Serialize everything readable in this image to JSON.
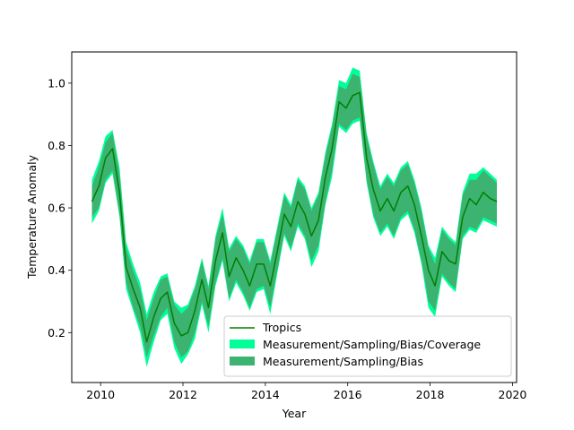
{
  "chart_data": {
    "type": "area",
    "xlabel": "Year",
    "ylabel": "Temperature Anomaly",
    "xlim": [
      2009.3,
      2020.1
    ],
    "ylim": [
      0.04,
      1.1
    ],
    "xticks": [
      2010,
      2012,
      2014,
      2016,
      2018,
      2020
    ],
    "yticks": [
      0.2,
      0.4,
      0.6,
      0.8,
      1.0
    ],
    "xtick_labels": [
      "2010",
      "2012",
      "2014",
      "2016",
      "2018",
      "2020"
    ],
    "ytick_labels": [
      "0.2",
      "0.4",
      "0.6",
      "0.8",
      "1.0"
    ],
    "grid": false,
    "legend_position": "lower-right",
    "colors": {
      "line": "#008000",
      "coverage_band": "#00ff99",
      "msb_band": "#3cb371"
    },
    "legend": [
      {
        "label": "Tropics",
        "kind": "line"
      },
      {
        "label": "Measurement/Sampling/Bias/Coverage",
        "kind": "patch-coverage"
      },
      {
        "label": "Measurement/Sampling/Bias",
        "kind": "patch-msb"
      }
    ],
    "x": [
      2009.79,
      2009.96,
      2010.12,
      2010.29,
      2010.46,
      2010.62,
      2010.79,
      2010.96,
      2011.12,
      2011.29,
      2011.46,
      2011.62,
      2011.79,
      2011.96,
      2012.12,
      2012.29,
      2012.46,
      2012.62,
      2012.79,
      2012.96,
      2013.12,
      2013.29,
      2013.46,
      2013.62,
      2013.79,
      2013.96,
      2014.12,
      2014.29,
      2014.46,
      2014.62,
      2014.79,
      2014.96,
      2015.12,
      2015.29,
      2015.46,
      2015.62,
      2015.79,
      2015.96,
      2016.12,
      2016.29,
      2016.46,
      2016.62,
      2016.79,
      2016.96,
      2017.12,
      2017.29,
      2017.46,
      2017.62,
      2017.79,
      2017.96,
      2018.12,
      2018.29,
      2018.46,
      2018.62,
      2018.79,
      2018.96,
      2019.12,
      2019.29,
      2019.46,
      2019.62
    ],
    "series": [
      {
        "name": "Tropics",
        "values": [
          0.62,
          0.67,
          0.76,
          0.79,
          0.65,
          0.41,
          0.34,
          0.28,
          0.17,
          0.25,
          0.31,
          0.33,
          0.23,
          0.19,
          0.2,
          0.27,
          0.37,
          0.28,
          0.43,
          0.52,
          0.38,
          0.44,
          0.4,
          0.35,
          0.42,
          0.42,
          0.35,
          0.46,
          0.58,
          0.54,
          0.62,
          0.58,
          0.51,
          0.56,
          0.7,
          0.79,
          0.94,
          0.92,
          0.96,
          0.97,
          0.76,
          0.66,
          0.59,
          0.63,
          0.59,
          0.65,
          0.67,
          0.61,
          0.51,
          0.4,
          0.35,
          0.46,
          0.43,
          0.42,
          0.57,
          0.63,
          0.61,
          0.65,
          0.63,
          0.62
        ]
      }
    ],
    "bands": [
      {
        "name": "Measurement/Sampling/Bias/Coverage",
        "lower": [
          0.55,
          0.59,
          0.68,
          0.71,
          0.57,
          0.34,
          0.27,
          0.2,
          0.09,
          0.17,
          0.24,
          0.26,
          0.15,
          0.1,
          0.13,
          0.18,
          0.29,
          0.2,
          0.35,
          0.43,
          0.3,
          0.36,
          0.32,
          0.27,
          0.33,
          0.34,
          0.26,
          0.39,
          0.51,
          0.46,
          0.54,
          0.5,
          0.41,
          0.46,
          0.61,
          0.7,
          0.86,
          0.84,
          0.87,
          0.88,
          0.68,
          0.57,
          0.51,
          0.54,
          0.5,
          0.56,
          0.58,
          0.52,
          0.42,
          0.28,
          0.25,
          0.38,
          0.35,
          0.33,
          0.5,
          0.53,
          0.52,
          0.56,
          0.55,
          0.54
        ],
        "upper": [
          0.69,
          0.75,
          0.83,
          0.85,
          0.73,
          0.49,
          0.42,
          0.36,
          0.26,
          0.33,
          0.38,
          0.39,
          0.3,
          0.28,
          0.29,
          0.35,
          0.44,
          0.35,
          0.51,
          0.6,
          0.47,
          0.51,
          0.48,
          0.43,
          0.5,
          0.5,
          0.43,
          0.54,
          0.65,
          0.61,
          0.7,
          0.67,
          0.6,
          0.65,
          0.78,
          0.87,
          1.01,
          1.0,
          1.05,
          1.04,
          0.84,
          0.75,
          0.67,
          0.71,
          0.68,
          0.73,
          0.75,
          0.69,
          0.6,
          0.48,
          0.44,
          0.54,
          0.51,
          0.49,
          0.65,
          0.71,
          0.71,
          0.73,
          0.71,
          0.69
        ]
      },
      {
        "name": "Measurement/Sampling/Bias",
        "lower": [
          0.57,
          0.6,
          0.69,
          0.72,
          0.58,
          0.36,
          0.28,
          0.22,
          0.12,
          0.19,
          0.25,
          0.28,
          0.17,
          0.12,
          0.14,
          0.2,
          0.3,
          0.22,
          0.36,
          0.44,
          0.31,
          0.37,
          0.33,
          0.28,
          0.34,
          0.35,
          0.28,
          0.4,
          0.52,
          0.47,
          0.55,
          0.51,
          0.43,
          0.48,
          0.62,
          0.72,
          0.87,
          0.85,
          0.88,
          0.89,
          0.69,
          0.58,
          0.52,
          0.55,
          0.51,
          0.57,
          0.59,
          0.53,
          0.43,
          0.3,
          0.27,
          0.39,
          0.36,
          0.34,
          0.51,
          0.54,
          0.53,
          0.57,
          0.56,
          0.55
        ],
        "upper": [
          0.67,
          0.73,
          0.81,
          0.84,
          0.71,
          0.47,
          0.4,
          0.34,
          0.24,
          0.31,
          0.37,
          0.38,
          0.29,
          0.26,
          0.28,
          0.34,
          0.43,
          0.34,
          0.5,
          0.58,
          0.46,
          0.5,
          0.47,
          0.42,
          0.49,
          0.49,
          0.42,
          0.53,
          0.64,
          0.6,
          0.69,
          0.66,
          0.59,
          0.64,
          0.77,
          0.86,
          0.99,
          0.98,
          1.03,
          1.02,
          0.83,
          0.74,
          0.66,
          0.7,
          0.67,
          0.72,
          0.74,
          0.68,
          0.59,
          0.47,
          0.42,
          0.53,
          0.5,
          0.48,
          0.64,
          0.69,
          0.69,
          0.72,
          0.7,
          0.68
        ]
      }
    ]
  }
}
